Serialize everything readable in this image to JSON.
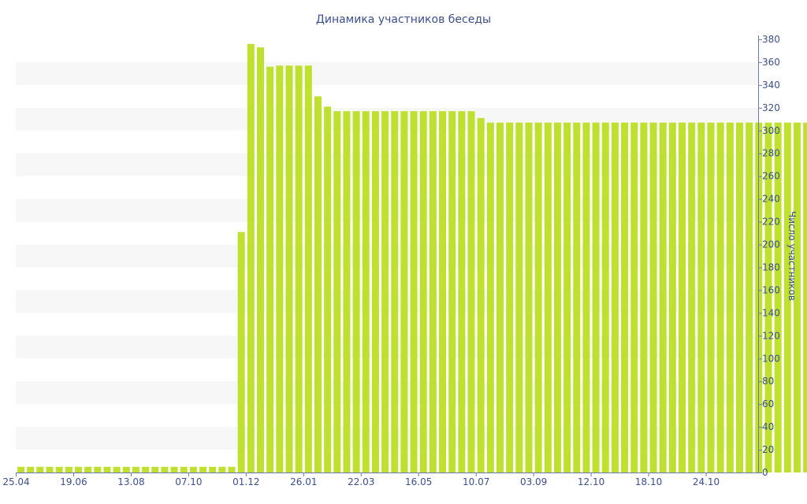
{
  "chart_data": {
    "type": "bar",
    "title": "Динамика участников беседы",
    "xlabel": "",
    "ylabel": "Число участников",
    "ylim": [
      0,
      380
    ],
    "yticks": [
      0,
      20,
      40,
      60,
      80,
      100,
      120,
      140,
      160,
      180,
      200,
      220,
      240,
      260,
      280,
      300,
      320,
      340,
      360,
      380
    ],
    "y_axis_side": "right",
    "grid": "alternating horizontal bands",
    "x_tick_labels": [
      {
        "label": "25.04",
        "index": 0
      },
      {
        "label": "19.06",
        "index": 6
      },
      {
        "label": "13.08",
        "index": 12
      },
      {
        "label": "07.10",
        "index": 18
      },
      {
        "label": "01.12",
        "index": 24
      },
      {
        "label": "26.01",
        "index": 30
      },
      {
        "label": "22.03",
        "index": 36
      },
      {
        "label": "16.05",
        "index": 42
      },
      {
        "label": "10.07",
        "index": 48
      },
      {
        "label": "03.09",
        "index": 54
      },
      {
        "label": "12.10",
        "index": 60
      },
      {
        "label": "18.10",
        "index": 66
      },
      {
        "label": "24.10",
        "index": 72
      }
    ],
    "values": [
      5,
      5,
      5,
      5,
      5,
      5,
      5,
      5,
      5,
      5,
      5,
      5,
      5,
      5,
      5,
      5,
      5,
      5,
      5,
      5,
      5,
      5,
      5,
      211,
      376,
      373,
      356,
      357,
      357,
      357,
      357,
      330,
      321,
      317,
      317,
      317,
      317,
      317,
      317,
      317,
      317,
      317,
      317,
      317,
      317,
      317,
      317,
      317,
      311,
      307,
      307,
      307,
      307,
      307,
      307,
      307,
      307,
      307,
      307,
      307,
      307,
      307,
      307,
      307,
      307,
      307,
      307,
      307,
      307,
      307,
      307,
      307,
      307,
      307,
      307,
      307,
      307,
      307,
      307,
      307,
      307,
      307,
      307
    ],
    "colors": {
      "bar": "#bfe02e",
      "band": "#f7f7f7",
      "text": "#3c4f8f",
      "axis": "#6b7aa8"
    }
  }
}
